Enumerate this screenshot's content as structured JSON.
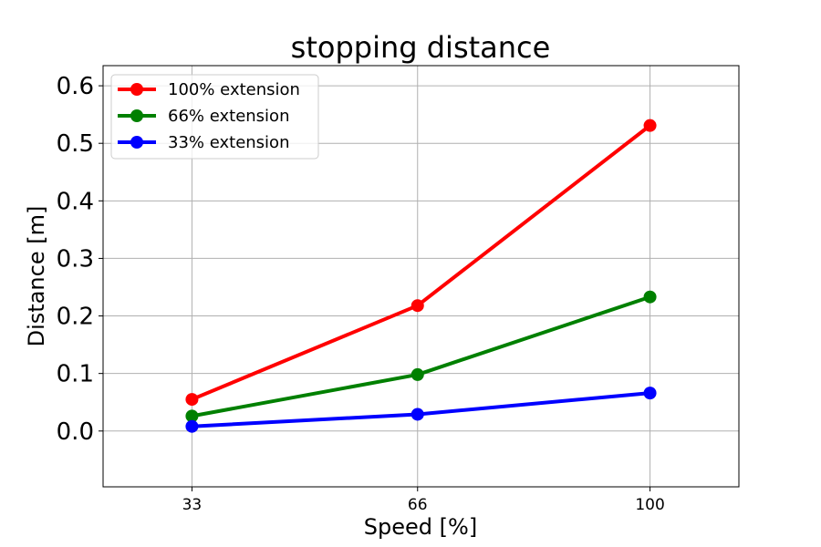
{
  "chart_data": {
    "type": "line",
    "title": "stopping distance",
    "xlabel": "Speed [%]",
    "ylabel": "Distance [m]",
    "x": [
      33,
      66,
      100
    ],
    "xticks": [
      "33",
      "66",
      "100"
    ],
    "xlim": [
      20,
      113
    ],
    "ylim": [
      -0.097,
      0.635
    ],
    "yticks": [
      "0.0",
      "0.1",
      "0.2",
      "0.3",
      "0.4",
      "0.5",
      "0.6"
    ],
    "grid": true,
    "legend_position": "top-left",
    "series": [
      {
        "name": "100% extension",
        "color": "#ff0000",
        "values": [
          0.055,
          0.218,
          0.531
        ]
      },
      {
        "name": "66% extension",
        "color": "#008000",
        "values": [
          0.026,
          0.098,
          0.233
        ]
      },
      {
        "name": "33% extension",
        "color": "#0000ff",
        "values": [
          0.008,
          0.029,
          0.066
        ]
      }
    ]
  }
}
